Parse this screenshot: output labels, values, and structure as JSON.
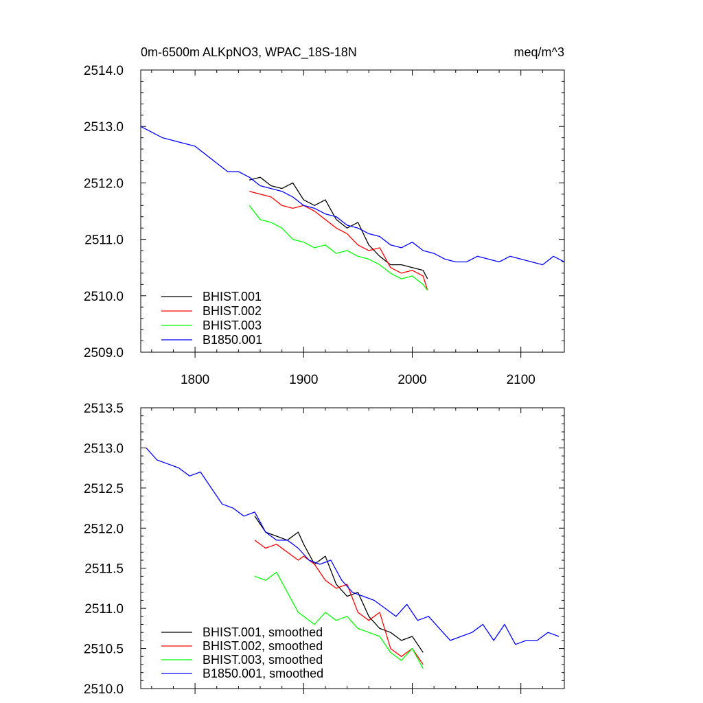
{
  "chart_data": [
    {
      "type": "line",
      "title": "0m-6500m ALKpNO3, WPAC_18S-18N",
      "units": "meq/m^3",
      "xlabel": "",
      "ylabel": "",
      "xlim": [
        1750,
        2140
      ],
      "ylim": [
        2509.0,
        2514.0
      ],
      "x_ticks": [
        1800,
        1900,
        2000,
        2100
      ],
      "x_tick_labels": [
        "1800",
        "1900",
        "2000",
        "2100"
      ],
      "y_ticks": [
        2509.0,
        2510.0,
        2511.0,
        2512.0,
        2513.0,
        2514.0
      ],
      "y_tick_labels": [
        "2509.0",
        "2510.0",
        "2511.0",
        "2512.0",
        "2513.0",
        "2514.0"
      ],
      "legend_position": "bottom-left",
      "series": [
        {
          "name": "BHIST.001",
          "color": "#000000",
          "x": [
            1850,
            1860,
            1870,
            1880,
            1890,
            1900,
            1910,
            1920,
            1930,
            1940,
            1950,
            1960,
            1970,
            1980,
            1990,
            2000,
            2010,
            2014
          ],
          "y": [
            2512.05,
            2512.1,
            2511.95,
            2511.9,
            2512.0,
            2511.7,
            2511.6,
            2511.7,
            2511.35,
            2511.2,
            2511.3,
            2510.9,
            2510.7,
            2510.55,
            2510.55,
            2510.5,
            2510.45,
            2510.3
          ]
        },
        {
          "name": "BHIST.002",
          "color": "#ff0000",
          "x": [
            1850,
            1860,
            1870,
            1880,
            1890,
            1900,
            1910,
            1920,
            1930,
            1940,
            1950,
            1960,
            1970,
            1980,
            1990,
            2000,
            2010,
            2014
          ],
          "y": [
            2511.85,
            2511.8,
            2511.75,
            2511.6,
            2511.55,
            2511.6,
            2511.5,
            2511.35,
            2511.2,
            2511.1,
            2510.9,
            2510.8,
            2510.85,
            2510.5,
            2510.4,
            2510.45,
            2510.35,
            2510.1
          ]
        },
        {
          "name": "BHIST.003",
          "color": "#00ff00",
          "x": [
            1850,
            1860,
            1870,
            1880,
            1890,
            1900,
            1910,
            1920,
            1930,
            1940,
            1950,
            1960,
            1970,
            1980,
            1990,
            2000,
            2010,
            2014
          ],
          "y": [
            2511.6,
            2511.35,
            2511.3,
            2511.2,
            2511.0,
            2510.95,
            2510.85,
            2510.9,
            2510.75,
            2510.8,
            2510.7,
            2510.65,
            2510.55,
            2510.4,
            2510.3,
            2510.35,
            2510.2,
            2510.1
          ]
        },
        {
          "name": "B1850.001",
          "color": "#0000ff",
          "x": [
            1750,
            1760,
            1770,
            1780,
            1790,
            1800,
            1810,
            1820,
            1830,
            1840,
            1850,
            1860,
            1870,
            1880,
            1890,
            1900,
            1910,
            1920,
            1930,
            1940,
            1950,
            1960,
            1970,
            1980,
            1990,
            2000,
            2010,
            2020,
            2030,
            2040,
            2050,
            2060,
            2070,
            2080,
            2090,
            2100,
            2110,
            2120,
            2130,
            2140
          ],
          "y": [
            2513.0,
            2512.9,
            2512.8,
            2512.75,
            2512.7,
            2512.65,
            2512.5,
            2512.35,
            2512.2,
            2512.2,
            2512.1,
            2511.95,
            2511.9,
            2511.85,
            2511.75,
            2511.6,
            2511.55,
            2511.45,
            2511.4,
            2511.25,
            2511.2,
            2511.1,
            2511.05,
            2510.9,
            2510.85,
            2510.95,
            2510.8,
            2510.75,
            2510.65,
            2510.6,
            2510.6,
            2510.7,
            2510.65,
            2510.6,
            2510.7,
            2510.65,
            2510.6,
            2510.55,
            2510.7,
            2510.6
          ]
        }
      ]
    },
    {
      "type": "line",
      "title": "",
      "xlabel": "",
      "ylabel": "",
      "xlim": [
        1750,
        2140
      ],
      "ylim": [
        2510.0,
        2513.5
      ],
      "x_ticks": [
        1800,
        1900,
        2000,
        2100
      ],
      "y_ticks": [
        2510.0,
        2510.5,
        2511.0,
        2511.5,
        2512.0,
        2512.5,
        2513.0,
        2513.5
      ],
      "y_tick_labels": [
        "2510.0",
        "2510.5",
        "2511.0",
        "2511.5",
        "2512.0",
        "2512.5",
        "2513.0",
        "2513.5"
      ],
      "legend_position": "bottom-left",
      "series": [
        {
          "name": "BHIST.001, smoothed",
          "color": "#000000",
          "x": [
            1855,
            1865,
            1875,
            1885,
            1895,
            1900,
            1910,
            1920,
            1930,
            1940,
            1950,
            1960,
            1970,
            1980,
            1990,
            2000,
            2010
          ],
          "y": [
            2512.15,
            2511.95,
            2511.9,
            2511.85,
            2511.95,
            2511.8,
            2511.55,
            2511.65,
            2511.3,
            2511.15,
            2511.2,
            2510.9,
            2510.75,
            2510.7,
            2510.6,
            2510.65,
            2510.45
          ]
        },
        {
          "name": "BHIST.002, smoothed",
          "color": "#ff0000",
          "x": [
            1855,
            1865,
            1875,
            1885,
            1895,
            1900,
            1910,
            1920,
            1930,
            1940,
            1950,
            1960,
            1970,
            1980,
            1990,
            2000,
            2010
          ],
          "y": [
            2511.85,
            2511.75,
            2511.8,
            2511.7,
            2511.6,
            2511.65,
            2511.55,
            2511.35,
            2511.25,
            2511.3,
            2510.95,
            2510.85,
            2510.95,
            2510.5,
            2510.4,
            2510.5,
            2510.3
          ]
        },
        {
          "name": "BHIST.003, smoothed",
          "color": "#00ff00",
          "x": [
            1855,
            1865,
            1875,
            1885,
            1895,
            1900,
            1910,
            1920,
            1930,
            1940,
            1950,
            1960,
            1970,
            1980,
            1990,
            2000,
            2010
          ],
          "y": [
            2511.4,
            2511.35,
            2511.45,
            2511.2,
            2510.95,
            2510.9,
            2510.8,
            2510.95,
            2510.85,
            2510.9,
            2510.75,
            2510.7,
            2510.65,
            2510.45,
            2510.35,
            2510.5,
            2510.25
          ]
        },
        {
          "name": "B1850.001, smoothed",
          "color": "#0000ff",
          "x": [
            1755,
            1765,
            1775,
            1785,
            1795,
            1805,
            1815,
            1825,
            1835,
            1845,
            1855,
            1865,
            1875,
            1885,
            1895,
            1905,
            1915,
            1925,
            1935,
            1945,
            1955,
            1965,
            1975,
            1985,
            1995,
            2005,
            2015,
            2025,
            2035,
            2045,
            2055,
            2065,
            2075,
            2085,
            2095,
            2105,
            2115,
            2125,
            2135
          ],
          "y": [
            2513.0,
            2512.85,
            2512.8,
            2512.75,
            2512.65,
            2512.7,
            2512.5,
            2512.3,
            2512.25,
            2512.15,
            2512.2,
            2511.95,
            2511.85,
            2511.85,
            2511.75,
            2511.6,
            2511.55,
            2511.6,
            2511.35,
            2511.2,
            2511.15,
            2511.1,
            2511.0,
            2510.9,
            2511.05,
            2510.85,
            2510.9,
            2510.75,
            2510.6,
            2510.65,
            2510.7,
            2510.8,
            2510.6,
            2510.8,
            2510.55,
            2510.6,
            2510.6,
            2510.7,
            2510.65
          ]
        }
      ]
    }
  ]
}
